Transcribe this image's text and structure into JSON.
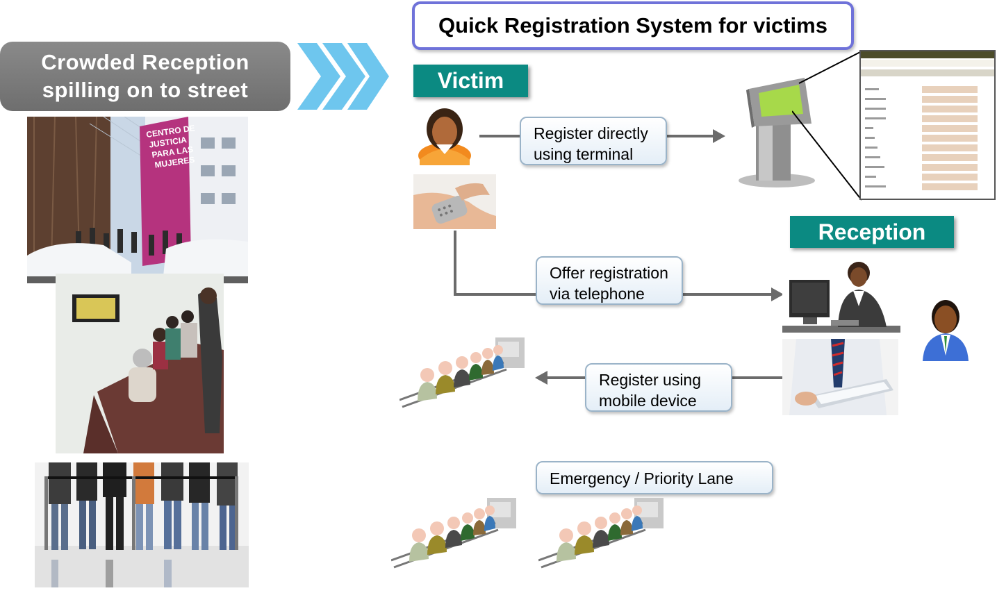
{
  "left_header": {
    "text": "Crowded Reception\nspilling on to street"
  },
  "main_title": "Quick Registration System for victims",
  "victim_tag": "Victim",
  "reception_tag": "Reception",
  "steps": {
    "terminal": "Register directly\nusing terminal",
    "telephone": "Offer registration\nvia telephone",
    "mobile": "Register using\nmobile device",
    "priority": "Emergency / Priority Lane"
  },
  "building_sign": "CENTRO DE\nJUSTICIA\nPARA LAS\nMUJERES",
  "colors": {
    "teal": "#0b8a82",
    "title_border": "#6f72d9",
    "chevron": "#6ec6ee",
    "pill": "#7a7a7a",
    "arrow": "#6b6b6b"
  }
}
